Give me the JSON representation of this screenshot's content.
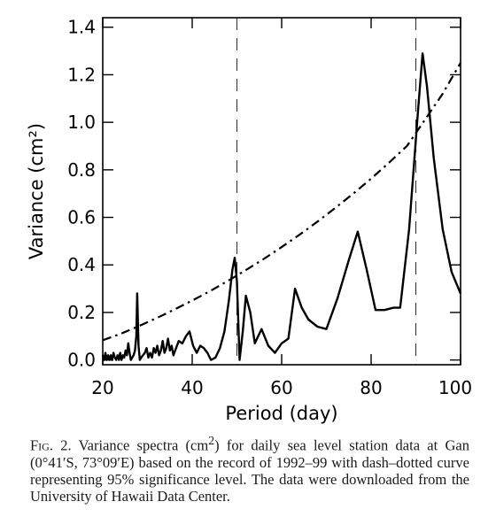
{
  "chart_data": {
    "type": "line",
    "xlabel": "Period (day)",
    "ylabel": "Variance (cm²)",
    "xlim": [
      20,
      100
    ],
    "ylim": [
      -0.02,
      1.44
    ],
    "xticks": [
      20,
      40,
      60,
      80,
      100
    ],
    "xtick_labels": [
      "20",
      "40",
      "60",
      "80",
      "100"
    ],
    "yticks": [
      0.0,
      0.2,
      0.4,
      0.6,
      0.8,
      1.0,
      1.2,
      1.4
    ],
    "ytick_labels": [
      "0.0",
      "0.2",
      "0.4",
      "0.6",
      "0.8",
      "1.0",
      "1.2",
      "1.4"
    ],
    "grid": false,
    "series": [
      {
        "style": "solid",
        "x": [
          20.0,
          20.3,
          20.6,
          20.9,
          21.2,
          21.5,
          21.8,
          22.1,
          22.4,
          22.7,
          23.0,
          23.3,
          23.6,
          23.9,
          24.2,
          24.5,
          24.8,
          25.1,
          25.4,
          25.7,
          26.0,
          26.3,
          26.6,
          26.9,
          27.2,
          27.5,
          27.7,
          28.0,
          28.3,
          28.6,
          29.0,
          29.4,
          29.8,
          30.2,
          30.6,
          31.0,
          31.4,
          31.8,
          32.2,
          32.6,
          33.0,
          33.4,
          33.8,
          34.2,
          34.6,
          35.0,
          35.4,
          35.8,
          36.2,
          37.0,
          37.8,
          38.6,
          39.4,
          40.2,
          41.0,
          41.8,
          42.6,
          43.4,
          44.2,
          45.2,
          46.2,
          47.2,
          48.2,
          49.0,
          49.5,
          50.0,
          50.6,
          51.3,
          52.0,
          53.0,
          54.0,
          55.5,
          57.0,
          58.5,
          60.0,
          61.5,
          63.0,
          64.5,
          66.0,
          68.0,
          70.0,
          72.5,
          75.0,
          77.0,
          79.0,
          81.0,
          83.0,
          85.0,
          86.5,
          88.5,
          90.5,
          91.5,
          92.5,
          94.0,
          96.0,
          98.0,
          100.0
        ],
        "y": [
          0.02,
          0.0,
          0.03,
          0.0,
          0.02,
          0.0,
          0.02,
          0.0,
          0.03,
          0.01,
          0.0,
          0.02,
          0.0,
          0.03,
          0.0,
          0.02,
          0.01,
          0.04,
          0.02,
          0.07,
          0.03,
          0.0,
          0.01,
          0.02,
          0.04,
          0.1,
          0.28,
          0.06,
          0.0,
          0.01,
          0.02,
          0.03,
          0.05,
          0.01,
          0.03,
          0.01,
          0.05,
          0.03,
          0.06,
          0.02,
          0.04,
          0.08,
          0.03,
          0.05,
          0.09,
          0.04,
          0.06,
          0.02,
          0.04,
          0.08,
          0.07,
          0.1,
          0.12,
          0.06,
          0.03,
          0.06,
          0.05,
          0.03,
          0.0,
          0.01,
          0.05,
          0.12,
          0.25,
          0.38,
          0.43,
          0.33,
          0.0,
          0.12,
          0.27,
          0.2,
          0.07,
          0.13,
          0.06,
          0.03,
          0.07,
          0.09,
          0.3,
          0.22,
          0.17,
          0.14,
          0.13,
          0.26,
          0.42,
          0.54,
          0.38,
          0.21,
          0.21,
          0.22,
          0.22,
          0.55,
          1.05,
          1.29,
          1.15,
          0.85,
          0.55,
          0.37,
          0.28
        ]
      },
      {
        "style": "dash-dot",
        "x": [
          20,
          24,
          28,
          32,
          36,
          40,
          44,
          48,
          52,
          56,
          60,
          64,
          68,
          72,
          76,
          80,
          84,
          88,
          92,
          96,
          100
        ],
        "y": [
          0.083,
          0.11,
          0.142,
          0.176,
          0.212,
          0.25,
          0.29,
          0.333,
          0.378,
          0.425,
          0.475,
          0.527,
          0.582,
          0.64,
          0.7,
          0.763,
          0.83,
          0.9,
          1.01,
          1.12,
          1.25
        ]
      }
    ],
    "vlines": [
      {
        "x": 50,
        "style": "dashed"
      },
      {
        "x": 90,
        "style": "dashed"
      }
    ]
  },
  "caption": {
    "fig_label": "Fig. 2.",
    "text_before_unit": " Variance spectra (cm",
    "superscript": "2",
    "text_after_unit": ") for daily sea level station data at Gan (0°41′S, 73°09′E) based on the record of 1992–99 with dash–dotted curve representing 95% significance level. The data were downloaded from the University of Hawaii Data Center."
  }
}
